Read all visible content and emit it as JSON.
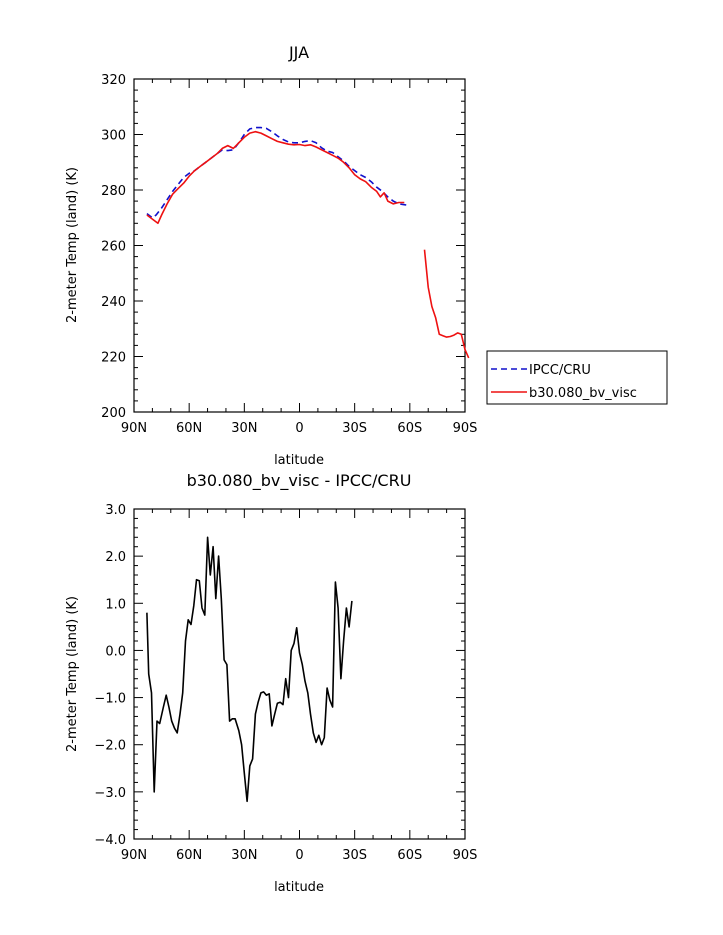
{
  "chart_data": [
    {
      "type": "line",
      "title": "JJA",
      "xlabel": "latitude",
      "ylabel": "2-meter Temp (land) (K)",
      "xlim": [
        90,
        -90
      ],
      "ylim": [
        200,
        320
      ],
      "xticks": [
        {
          "value": 90,
          "label": "90N"
        },
        {
          "value": 60,
          "label": "60N"
        },
        {
          "value": 30,
          "label": "30N"
        },
        {
          "value": 0,
          "label": "0"
        },
        {
          "value": -30,
          "label": "30S"
        },
        {
          "value": -60,
          "label": "60S"
        },
        {
          "value": -90,
          "label": "90S"
        }
      ],
      "yticks": [
        {
          "value": 200,
          "label": "200"
        },
        {
          "value": 220,
          "label": "220"
        },
        {
          "value": 240,
          "label": "240"
        },
        {
          "value": 260,
          "label": "260"
        },
        {
          "value": 280,
          "label": "280"
        },
        {
          "value": 300,
          "label": "300"
        },
        {
          "value": 320,
          "label": "320"
        }
      ],
      "legend": "right",
      "series": [
        {
          "name": "IPCC/CRU",
          "color": "#1010cc",
          "dash": "dashed",
          "segments": [
            [
              [
                83,
                271.5
              ],
              [
                80,
                270
              ],
              [
                78,
                271
              ],
              [
                75,
                273.5
              ],
              [
                72,
                276.5
              ],
              [
                69,
                279.5
              ],
              [
                66,
                282
              ],
              [
                63,
                284.5
              ],
              [
                60,
                286
              ],
              [
                57,
                287
              ],
              [
                54,
                288.5
              ],
              [
                51,
                290
              ],
              [
                48,
                291.5
              ],
              [
                45,
                293
              ],
              [
                42,
                294.5
              ],
              [
                39,
                294.2
              ],
              [
                36,
                294.5
              ],
              [
                33,
                297
              ],
              [
                30,
                300
              ],
              [
                27,
                302
              ],
              [
                24,
                302.5
              ],
              [
                21,
                302.5
              ],
              [
                18,
                302.2
              ],
              [
                15,
                301
              ],
              [
                12,
                299.5
              ],
              [
                9,
                298.2
              ],
              [
                6,
                297.3
              ],
              [
                3,
                297
              ],
              [
                0,
                297
              ],
              [
                -3,
                297.5
              ],
              [
                -6,
                297.8
              ],
              [
                -9,
                297
              ],
              [
                -12,
                295.2
              ],
              [
                -15,
                294
              ],
              [
                -18,
                293.5
              ],
              [
                -21,
                292
              ],
              [
                -24,
                290.5
              ],
              [
                -27,
                288.5
              ],
              [
                -30,
                287
              ],
              [
                -33,
                285.5
              ],
              [
                -36,
                284.5
              ],
              [
                -39,
                283
              ],
              [
                -42,
                281
              ],
              [
                -45,
                279.5
              ],
              [
                -48,
                277.5
              ],
              [
                -51,
                276
              ],
              [
                -54,
                275
              ],
              [
                -57,
                274.7
              ],
              [
                -59,
                274.5
              ]
            ]
          ]
        },
        {
          "name": "b30.080_bv_visc",
          "color": "#ee1111",
          "dash": "solid",
          "segments": [
            [
              [
                83,
                271
              ],
              [
                80,
                269.5
              ],
              [
                77,
                268
              ],
              [
                75,
                271
              ],
              [
                72,
                275
              ],
              [
                69,
                278.5
              ],
              [
                66,
                280.5
              ],
              [
                63,
                282.5
              ],
              [
                60,
                285
              ],
              [
                57,
                287
              ],
              [
                54,
                288.5
              ],
              [
                51,
                290
              ],
              [
                48,
                291.5
              ],
              [
                45,
                293
              ],
              [
                42,
                295
              ],
              [
                39,
                296
              ],
              [
                36,
                295
              ],
              [
                33,
                297
              ],
              [
                30,
                299
              ],
              [
                27,
                300.5
              ],
              [
                24,
                301
              ],
              [
                21,
                300.5
              ],
              [
                18,
                299.5
              ],
              [
                15,
                298.5
              ],
              [
                12,
                297.5
              ],
              [
                9,
                297
              ],
              [
                6,
                296.5
              ],
              [
                3,
                296.3
              ],
              [
                0,
                296.4
              ],
              [
                -3,
                296
              ],
              [
                -6,
                296.3
              ],
              [
                -9,
                295.5
              ],
              [
                -12,
                294.5
              ],
              [
                -15,
                293.5
              ],
              [
                -18,
                292.5
              ],
              [
                -21,
                291.5
              ],
              [
                -24,
                290
              ],
              [
                -27,
                288
              ],
              [
                -30,
                285.5
              ],
              [
                -33,
                284
              ],
              [
                -36,
                283
              ],
              [
                -39,
                281
              ],
              [
                -42,
                279.5
              ],
              [
                -44,
                277.5
              ],
              [
                -46,
                279
              ],
              [
                -48,
                276
              ],
              [
                -51,
                275
              ],
              [
                -54,
                275.5
              ],
              [
                -57,
                275.5
              ]
            ],
            [
              [
                -68,
                258.5
              ],
              [
                -70,
                245
              ],
              [
                -72,
                238
              ],
              [
                -74,
                234
              ],
              [
                -76,
                228
              ],
              [
                -78,
                227.5
              ],
              [
                -80,
                227
              ],
              [
                -82,
                227.2
              ],
              [
                -84,
                227.7
              ],
              [
                -86,
                228.5
              ],
              [
                -88,
                228
              ],
              [
                -90,
                222.5
              ],
              [
                -92,
                219.5
              ]
            ]
          ]
        }
      ]
    },
    {
      "type": "line",
      "title": "b30.080_bv_visc - IPCC/CRU",
      "xlabel": "latitude",
      "ylabel": "2-meter Temp (land) (K)",
      "xlim": [
        90,
        -90
      ],
      "ylim": [
        -4.0,
        3.0
      ],
      "xticks": [
        {
          "value": 90,
          "label": "90N"
        },
        {
          "value": 60,
          "label": "60N"
        },
        {
          "value": 30,
          "label": "30N"
        },
        {
          "value": 0,
          "label": "0"
        },
        {
          "value": -30,
          "label": "30S"
        },
        {
          "value": -60,
          "label": "60S"
        },
        {
          "value": -90,
          "label": "90S"
        }
      ],
      "yticks": [
        {
          "value": -4,
          "label": "−4.0"
        },
        {
          "value": -3,
          "label": "−3.0"
        },
        {
          "value": -2,
          "label": "−2.0"
        },
        {
          "value": -1,
          "label": "−1.0"
        },
        {
          "value": 0,
          "label": "0.0"
        },
        {
          "value": 1,
          "label": "1.0"
        },
        {
          "value": 2,
          "label": "2.0"
        },
        {
          "value": 3,
          "label": "3.0"
        }
      ],
      "series": [
        {
          "color": "#000000",
          "dash": "solid",
          "segments": [
            [
              [
                83,
                0.8
              ],
              [
                82,
                -0.5
              ],
              [
                80.5,
                -0.9
              ],
              [
                79,
                -3.0
              ],
              [
                77.5,
                -1.5
              ],
              [
                76,
                -1.55
              ],
              [
                74,
                -1.2
              ],
              [
                72.5,
                -0.95
              ],
              [
                71,
                -1.2
              ],
              [
                69.5,
                -1.5
              ],
              [
                68,
                -1.65
              ],
              [
                66.5,
                -1.75
              ],
              [
                65,
                -1.35
              ],
              [
                63.5,
                -0.9
              ],
              [
                62,
                0.2
              ],
              [
                60.5,
                0.65
              ],
              [
                59,
                0.55
              ],
              [
                57.5,
                0.95
              ],
              [
                56,
                1.5
              ],
              [
                54.5,
                1.48
              ],
              [
                53,
                0.9
              ],
              [
                51.5,
                0.75
              ],
              [
                50,
                2.4
              ],
              [
                48.5,
                1.6
              ],
              [
                47,
                2.2
              ],
              [
                45.5,
                1.1
              ],
              [
                44,
                2.0
              ],
              [
                42.5,
                1.1
              ],
              [
                41,
                -0.2
              ],
              [
                39.5,
                -0.3
              ],
              [
                38,
                -1.5
              ],
              [
                36.5,
                -1.45
              ],
              [
                35,
                -1.45
              ],
              [
                33,
                -1.7
              ],
              [
                31.5,
                -2.0
              ],
              [
                30,
                -2.6
              ],
              [
                28.5,
                -3.2
              ],
              [
                27,
                -2.45
              ],
              [
                25.5,
                -2.3
              ],
              [
                24,
                -1.35
              ],
              [
                22.5,
                -1.1
              ],
              [
                21,
                -0.9
              ],
              [
                19.5,
                -0.88
              ],
              [
                18,
                -0.95
              ],
              [
                16.5,
                -0.92
              ],
              [
                15,
                -1.6
              ],
              [
                13.5,
                -1.35
              ],
              [
                12,
                -1.12
              ],
              [
                10.5,
                -1.1
              ],
              [
                9,
                -1.15
              ],
              [
                7.5,
                -0.6
              ],
              [
                6,
                -1.0
              ],
              [
                4.5,
                0.0
              ],
              [
                3,
                0.15
              ],
              [
                1.5,
                0.48
              ],
              [
                0,
                -0.05
              ],
              [
                -1.5,
                -0.3
              ],
              [
                -3,
                -0.65
              ],
              [
                -4.5,
                -0.9
              ],
              [
                -6,
                -1.35
              ],
              [
                -7.5,
                -1.75
              ],
              [
                -9,
                -1.95
              ],
              [
                -10.5,
                -1.8
              ],
              [
                -12,
                -2.0
              ],
              [
                -13.5,
                -1.85
              ],
              [
                -15,
                -0.8
              ],
              [
                -16.5,
                -1.05
              ],
              [
                -18,
                -1.2
              ],
              [
                -19.5,
                1.45
              ],
              [
                -21,
                0.9
              ],
              [
                -22.5,
                -0.6
              ],
              [
                -24,
                0.2
              ],
              [
                -25.5,
                0.9
              ],
              [
                -27,
                0.5
              ],
              [
                -28.5,
                1.05
              ]
            ]
          ]
        }
      ]
    }
  ]
}
